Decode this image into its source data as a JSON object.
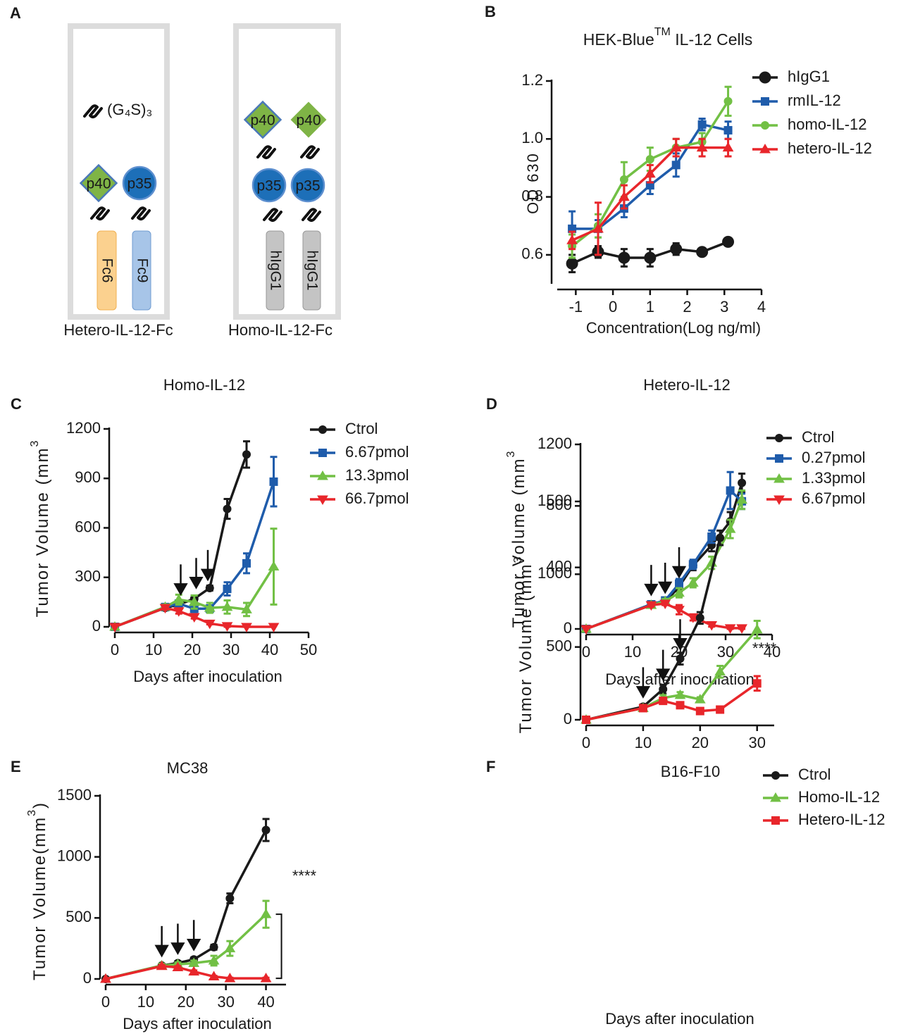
{
  "diagram": {
    "panel": "A",
    "constructs": [
      {
        "name": "Hetero-IL-12-Fc",
        "linker": "(G₄S)₃",
        "subunits": [
          "p40",
          "p35"
        ],
        "fc": [
          "Fc6",
          "Fc9"
        ]
      },
      {
        "name": "Homo-IL-12-Fc",
        "subunits": [
          "p40",
          "p40",
          "p35",
          "p35"
        ],
        "fc": [
          "hIgG1",
          "hIgG1"
        ]
      }
    ]
  },
  "chart_data": [
    {
      "type": "line",
      "panel": "B",
      "title": [
        "HEK-Blue",
        "TM",
        " IL-12 Cells"
      ],
      "x_label": "Concentration(Log ng/ml)",
      "y_label": "OD 630",
      "x": [
        -1.1,
        -0.4,
        0.3,
        1.0,
        1.7,
        2.4,
        3.1
      ],
      "xlim": [
        -1.5,
        4
      ],
      "xticks": [
        -1,
        0,
        1,
        2,
        3,
        4
      ],
      "ylim": [
        0.5,
        1.2
      ],
      "yticks": [
        0.6,
        0.8,
        {
          "value": 1,
          "label": "1.0"
        },
        1.2
      ],
      "legend": "right",
      "smooth": true,
      "series": [
        {
          "name": "hIgG1",
          "color": "#1a1a1a",
          "marker": "octagon",
          "values": [
            0.57,
            0.61,
            0.59,
            0.59,
            0.62,
            0.61,
            0.645
          ],
          "errors": [
            0.03,
            0.02,
            0.03,
            0.03,
            0.02,
            0.01,
            0.01
          ]
        },
        {
          "name": "rmIL-12",
          "color": "#1f5cab",
          "marker": "square",
          "values": [
            0.69,
            0.69,
            0.76,
            0.84,
            0.91,
            1.05,
            1.03
          ],
          "errors": [
            0.06,
            0.03,
            0.03,
            0.03,
            0.04,
            0.02,
            0.03
          ]
        },
        {
          "name": "homo-IL-12",
          "color": "#72c045",
          "marker": "circle",
          "values": [
            0.63,
            0.7,
            0.86,
            0.93,
            0.97,
            0.99,
            1.13
          ],
          "errors": [
            0.04,
            0.04,
            0.06,
            0.04,
            0.03,
            0.03,
            0.05
          ]
        },
        {
          "name": "hetero-IL-12",
          "color": "#e8262b",
          "marker": "triangle",
          "values": [
            0.65,
            0.69,
            0.8,
            0.88,
            0.97,
            0.97,
            0.97
          ],
          "errors": [
            0.03,
            0.09,
            0.04,
            0.03,
            0.03,
            0.03,
            0.03
          ]
        }
      ]
    },
    {
      "type": "line",
      "panel": "C",
      "title": "Homo-IL-12",
      "x_label": "Days after inoculation",
      "y_label": [
        "Tumor Volume (mm",
        "3"
      ],
      "x": [
        0,
        13,
        16.5,
        20.5,
        24.5,
        29,
        34,
        41
      ],
      "xlim": [
        0,
        50
      ],
      "xticks": [
        0,
        10,
        20,
        30,
        40,
        50
      ],
      "ylim": [
        0,
        1200
      ],
      "yticks": [
        0,
        300,
        600,
        900,
        1200
      ],
      "legend": "right",
      "dose_days": [
        17,
        21,
        24
      ],
      "series": [
        {
          "name": "Ctrol",
          "color": "#1a1a1a",
          "marker": "circle",
          "values": [
            0,
            115,
            135,
            170,
            235,
            715,
            1045,
            null
          ],
          "errors": [
            0,
            15,
            20,
            20,
            15,
            60,
            80,
            null
          ]
        },
        {
          "name": "6.67pmol",
          "color": "#1f5cab",
          "marker": "square",
          "values": [
            0,
            120,
            140,
            110,
            110,
            230,
            385,
            880
          ],
          "errors": [
            0,
            15,
            20,
            20,
            20,
            40,
            60,
            150
          ]
        },
        {
          "name": "13.3pmol",
          "color": "#72c045",
          "marker": "triangle",
          "values": [
            0,
            120,
            165,
            150,
            115,
            120,
            105,
            365
          ],
          "errors": [
            0,
            15,
            30,
            40,
            30,
            40,
            40,
            230
          ]
        },
        {
          "name": "66.7pmol",
          "color": "#e8262b",
          "marker": "triangle-down",
          "values": [
            0,
            115,
            95,
            60,
            20,
            5,
            0,
            0
          ],
          "errors": [
            0,
            10,
            15,
            10,
            5,
            5,
            0,
            0
          ]
        }
      ]
    },
    {
      "type": "line",
      "panel": "D",
      "title": "Hetero-IL-12",
      "x_label": "Days after inoculation",
      "y_label": [
        "Tumor Volume (mm",
        "3"
      ],
      "x": [
        0,
        14,
        17,
        20,
        23,
        27,
        31,
        33.5
      ],
      "xlim": [
        0,
        40
      ],
      "xticks": [
        0,
        10,
        20,
        30,
        40
      ],
      "ylim": [
        0,
        1200
      ],
      "yticks": [
        0,
        400,
        800,
        1200
      ],
      "legend": "right",
      "dose_days": [
        14,
        17,
        20
      ],
      "series": [
        {
          "name": "Ctrol",
          "color": "#1a1a1a",
          "marker": "circle",
          "values": [
            0,
            160,
            174,
            275,
            412,
            545,
            700,
            950
          ],
          "errors": [
            0,
            15,
            15,
            30,
            30,
            40,
            60,
            60
          ]
        },
        {
          "name": "0.27pmol",
          "color": "#1f5cab",
          "marker": "square",
          "values": [
            0,
            160,
            185,
            295,
            420,
            600,
            900,
            830
          ],
          "errors": [
            0,
            15,
            15,
            30,
            30,
            40,
            120,
            50
          ]
        },
        {
          "name": "1.33pmol",
          "color": "#72c045",
          "marker": "triangle",
          "values": [
            0,
            155,
            180,
            235,
            300,
            430,
            650,
            840
          ],
          "errors": [
            0,
            15,
            15,
            30,
            30,
            40,
            60,
            60
          ]
        },
        {
          "name": "6.67pmol",
          "color": "#e8262b",
          "marker": "triangle-down",
          "values": [
            0,
            155,
            165,
            125,
            75,
            25,
            5,
            5
          ],
          "errors": [
            0,
            10,
            10,
            30,
            20,
            10,
            5,
            5
          ]
        }
      ]
    },
    {
      "type": "line",
      "panel": "E",
      "title": "MC38",
      "x_label": "Days after inoculation",
      "y_label": [
        "Tumor Volume(mm",
        "3",
        ")"
      ],
      "x": [
        0,
        14,
        18,
        22,
        27,
        31,
        40
      ],
      "xlim": [
        0,
        45
      ],
      "xticks": [
        0,
        10,
        20,
        30,
        40
      ],
      "ylim": [
        0,
        1500
      ],
      "yticks": [
        0,
        500,
        1000,
        1500
      ],
      "legend": null,
      "dose_days": [
        14,
        18,
        22
      ],
      "annotation": "****",
      "bracket": true,
      "series": [
        {
          "color": "#1a1a1a",
          "marker": "circle",
          "values": [
            0,
            110,
            130,
            160,
            260,
            660,
            1220
          ],
          "errors": [
            0,
            15,
            15,
            15,
            20,
            40,
            90
          ]
        },
        {
          "color": "#72c045",
          "marker": "triangle",
          "values": [
            0,
            110,
            120,
            130,
            150,
            250,
            530
          ],
          "errors": [
            0,
            15,
            15,
            20,
            40,
            60,
            110
          ]
        },
        {
          "color": "#e8262b",
          "marker": "triangle",
          "values": [
            0,
            105,
            95,
            60,
            20,
            5,
            5
          ],
          "errors": [
            0,
            10,
            10,
            10,
            5,
            5,
            5
          ]
        }
      ]
    },
    {
      "type": "line",
      "panel": "F",
      "title": "B16-F10",
      "x_label": "Days after inoculation",
      "y_label": [
        "Tumor Volume (mm",
        "3"
      ],
      "x": [
        0,
        10,
        13.5,
        16.5,
        20,
        23.5,
        30
      ],
      "xlim": [
        0,
        33
      ],
      "xticks": [
        0,
        10,
        20,
        30
      ],
      "ylim": [
        0,
        1500
      ],
      "yticks": [
        0,
        500,
        1000,
        1500
      ],
      "legend": "right",
      "dose_days": [
        10,
        13.5,
        16.5
      ],
      "annotation": "****",
      "series": [
        {
          "name": "Ctrol",
          "color": "#1a1a1a",
          "marker": "circle",
          "values": [
            0,
            90,
            210,
            420,
            700,
            1250,
            null
          ],
          "errors": [
            0,
            15,
            30,
            40,
            40,
            50,
            null
          ]
        },
        {
          "name": "Homo-IL-12",
          "color": "#72c045",
          "marker": "triangle",
          "values": [
            0,
            80,
            150,
            170,
            140,
            330,
            620
          ],
          "errors": [
            0,
            15,
            20,
            20,
            15,
            40,
            60
          ]
        },
        {
          "name": "Hetero-IL-12",
          "color": "#e8262b",
          "marker": "square",
          "values": [
            0,
            80,
            130,
            100,
            60,
            70,
            250
          ],
          "errors": [
            0,
            15,
            20,
            20,
            20,
            20,
            50
          ]
        }
      ]
    }
  ]
}
